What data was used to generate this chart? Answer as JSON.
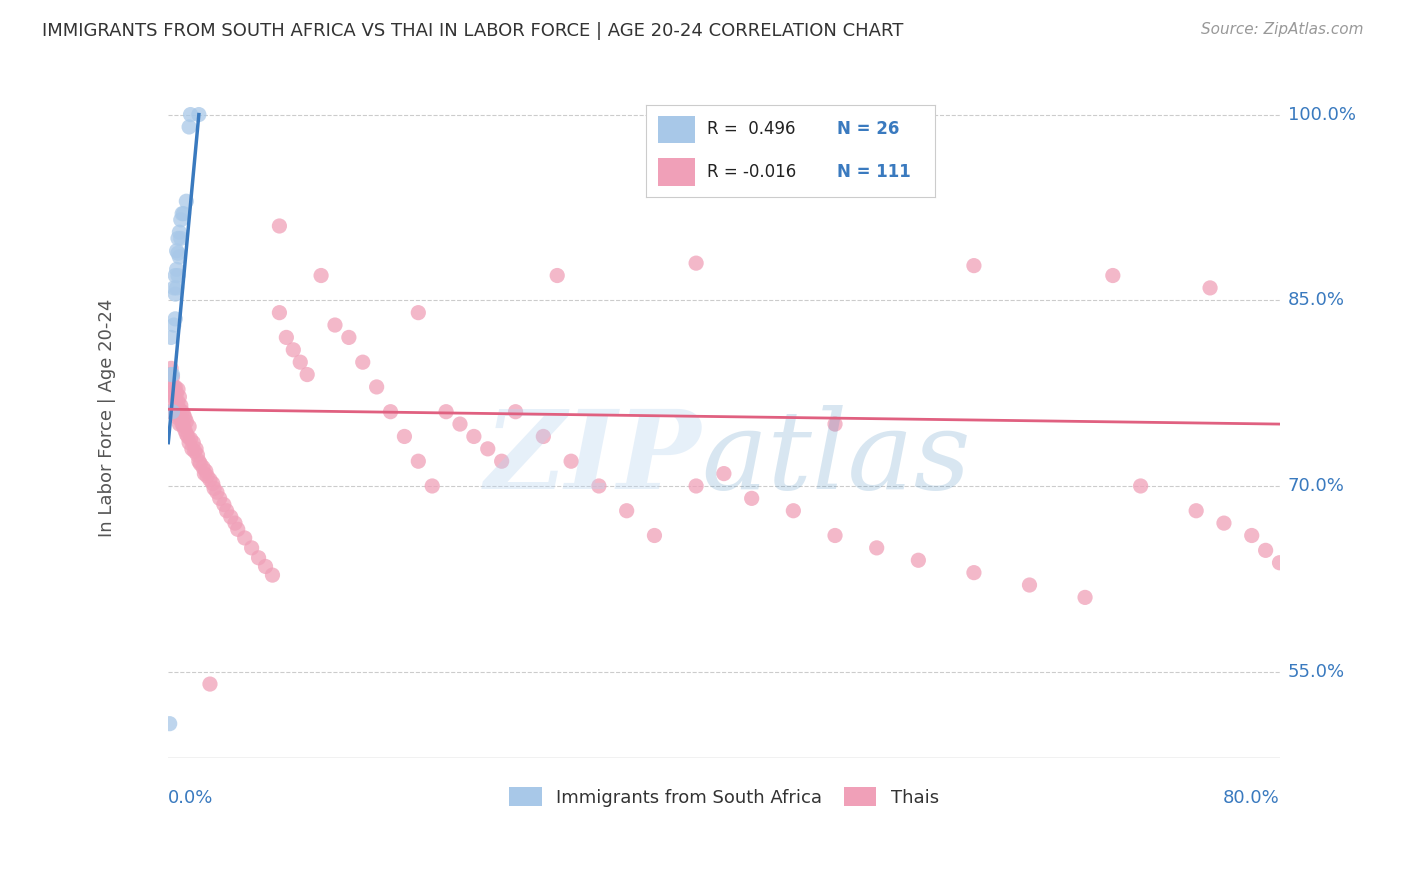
{
  "title": "IMMIGRANTS FROM SOUTH AFRICA VS THAI IN LABOR FORCE | AGE 20-24 CORRELATION CHART",
  "source": "Source: ZipAtlas.com",
  "ylabel": "In Labor Force | Age 20-24",
  "yticks": [
    "55.0%",
    "70.0%",
    "85.0%",
    "100.0%"
  ],
  "ytick_values": [
    0.55,
    0.7,
    0.85,
    1.0
  ],
  "legend_label1": "Immigrants from South Africa",
  "legend_label2": "Thais",
  "blue_color": "#a8c8e8",
  "pink_color": "#f0a0b8",
  "blue_line_color": "#3a7abf",
  "pink_line_color": "#e06080",
  "xlim": [
    0.0,
    0.8
  ],
  "ylim": [
    0.48,
    1.03
  ],
  "background_color": "#ffffff",
  "grid_color": "#cccccc",
  "blue_scatter_x": [
    0.001,
    0.002,
    0.002,
    0.003,
    0.003,
    0.004,
    0.004,
    0.005,
    0.005,
    0.005,
    0.006,
    0.006,
    0.006,
    0.007,
    0.007,
    0.007,
    0.008,
    0.008,
    0.009,
    0.009,
    0.01,
    0.011,
    0.013,
    0.015,
    0.016,
    0.022
  ],
  "blue_scatter_y": [
    0.508,
    0.79,
    0.82,
    0.76,
    0.79,
    0.83,
    0.86,
    0.835,
    0.855,
    0.87,
    0.86,
    0.875,
    0.89,
    0.87,
    0.888,
    0.9,
    0.885,
    0.905,
    0.9,
    0.915,
    0.92,
    0.92,
    0.93,
    0.99,
    1.0,
    1.0
  ],
  "pink_scatter_x": [
    0.001,
    0.001,
    0.002,
    0.002,
    0.003,
    0.003,
    0.003,
    0.004,
    0.004,
    0.004,
    0.005,
    0.005,
    0.005,
    0.006,
    0.006,
    0.007,
    0.007,
    0.007,
    0.008,
    0.008,
    0.008,
    0.009,
    0.009,
    0.01,
    0.01,
    0.011,
    0.011,
    0.012,
    0.012,
    0.013,
    0.013,
    0.014,
    0.015,
    0.015,
    0.016,
    0.017,
    0.018,
    0.019,
    0.02,
    0.021,
    0.022,
    0.023,
    0.025,
    0.026,
    0.027,
    0.028,
    0.03,
    0.032,
    0.033,
    0.035,
    0.037,
    0.04,
    0.042,
    0.045,
    0.048,
    0.05,
    0.055,
    0.06,
    0.065,
    0.07,
    0.075,
    0.08,
    0.085,
    0.09,
    0.095,
    0.1,
    0.11,
    0.12,
    0.13,
    0.14,
    0.15,
    0.16,
    0.17,
    0.18,
    0.19,
    0.2,
    0.21,
    0.22,
    0.23,
    0.24,
    0.25,
    0.27,
    0.29,
    0.31,
    0.33,
    0.35,
    0.38,
    0.4,
    0.42,
    0.45,
    0.48,
    0.51,
    0.54,
    0.58,
    0.62,
    0.66,
    0.7,
    0.74,
    0.76,
    0.78,
    0.79,
    0.8,
    0.08,
    0.18,
    0.28,
    0.38,
    0.48,
    0.58,
    0.68,
    0.75,
    0.03
  ],
  "pink_scatter_y": [
    0.76,
    0.79,
    0.775,
    0.795,
    0.768,
    0.778,
    0.788,
    0.76,
    0.775,
    0.78,
    0.758,
    0.77,
    0.78,
    0.762,
    0.775,
    0.755,
    0.768,
    0.778,
    0.75,
    0.762,
    0.772,
    0.755,
    0.765,
    0.75,
    0.76,
    0.748,
    0.758,
    0.745,
    0.755,
    0.742,
    0.752,
    0.74,
    0.735,
    0.748,
    0.738,
    0.73,
    0.735,
    0.728,
    0.73,
    0.725,
    0.72,
    0.718,
    0.715,
    0.71,
    0.712,
    0.708,
    0.705,
    0.702,
    0.698,
    0.695,
    0.69,
    0.685,
    0.68,
    0.675,
    0.67,
    0.665,
    0.658,
    0.65,
    0.642,
    0.635,
    0.628,
    0.84,
    0.82,
    0.81,
    0.8,
    0.79,
    0.87,
    0.83,
    0.82,
    0.8,
    0.78,
    0.76,
    0.74,
    0.72,
    0.7,
    0.76,
    0.75,
    0.74,
    0.73,
    0.72,
    0.76,
    0.74,
    0.72,
    0.7,
    0.68,
    0.66,
    0.7,
    0.71,
    0.69,
    0.68,
    0.66,
    0.65,
    0.64,
    0.63,
    0.62,
    0.61,
    0.7,
    0.68,
    0.67,
    0.66,
    0.648,
    0.638,
    0.91,
    0.84,
    0.87,
    0.88,
    0.75,
    0.878,
    0.87,
    0.86,
    0.54
  ],
  "blue_line_x": [
    0.0,
    0.022
  ],
  "blue_line_y": [
    0.735,
    1.0
  ],
  "pink_line_x": [
    0.0,
    0.8
  ],
  "pink_line_y": [
    0.762,
    0.75
  ]
}
